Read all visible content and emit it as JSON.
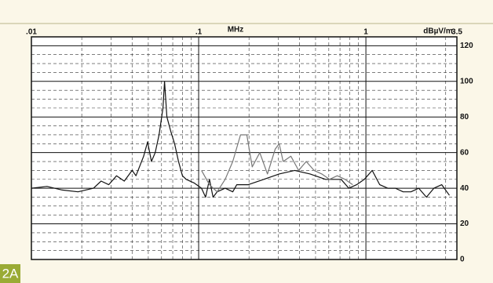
{
  "chart_data": {
    "type": "line",
    "panel_label": "2A",
    "x_label": "MHz",
    "y_label": "dBµV/m",
    "xscale": "log",
    "xlim": [
      0.01,
      3.5
    ],
    "ylim": [
      0,
      125
    ],
    "xticks": [
      {
        "value": 0.01,
        "label": ".01"
      },
      {
        "value": 0.1,
        "label": ".1"
      },
      1,
      3.5
    ],
    "yticks": [
      0,
      20,
      40,
      60,
      80,
      100,
      120
    ],
    "grid": true,
    "series": [
      {
        "color": "#111111",
        "x": [
          0.01,
          0.0124,
          0.0153,
          0.019,
          0.0235,
          0.0261,
          0.029,
          0.0323,
          0.0359,
          0.04,
          0.0422,
          0.0469,
          0.0495,
          0.0522,
          0.055,
          0.058,
          0.0612,
          0.0625,
          0.0646,
          0.0681,
          0.0718,
          0.0758,
          0.08,
          0.0843,
          0.0938,
          0.104,
          0.11,
          0.116,
          0.122,
          0.129,
          0.144,
          0.16,
          0.169,
          0.198,
          0.245,
          0.303,
          0.375,
          0.464,
          0.574,
          0.711,
          0.791,
          0.88,
          0.979,
          1.09,
          1.21,
          1.35,
          1.5,
          1.67,
          1.86,
          2.07,
          2.3,
          2.55,
          2.84,
          3.16
        ],
        "values": [
          40,
          41,
          39,
          38,
          40,
          44,
          42,
          47,
          44,
          50,
          47,
          58,
          66,
          55,
          60,
          70,
          85,
          100,
          80,
          72,
          65,
          55,
          47,
          45,
          43,
          40,
          35,
          45,
          35,
          38,
          40,
          38,
          42,
          42,
          45,
          48,
          50,
          48,
          45,
          45,
          40,
          42,
          45,
          50,
          42,
          40,
          40,
          38,
          38,
          40,
          35,
          40,
          42,
          36
        ]
      },
      {
        "color": "#777777",
        "x": [
          0.104,
          0.116,
          0.129,
          0.144,
          0.16,
          0.178,
          0.194,
          0.209,
          0.232,
          0.258,
          0.287,
          0.303,
          0.32,
          0.356,
          0.396,
          0.44,
          0.49,
          0.545,
          0.606,
          0.674,
          0.75,
          0.834
        ],
        "values": [
          50,
          42,
          38,
          45,
          55,
          70,
          70,
          52,
          60,
          48,
          62,
          65,
          55,
          58,
          50,
          55,
          50,
          48,
          45,
          47,
          45,
          42
        ]
      }
    ]
  }
}
